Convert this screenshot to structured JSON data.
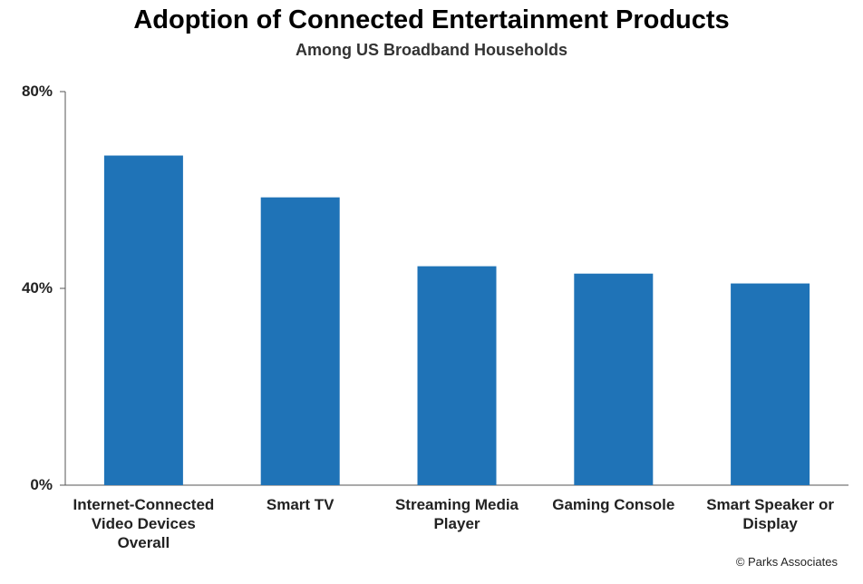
{
  "chart_data": {
    "type": "bar",
    "title": "Adoption of Connected Entertainment Products",
    "subtitle": "Among US Broadband Households",
    "categories": [
      "Internet-Connected\nVideo Devices\nOverall",
      "Smart TV",
      "Streaming Media\nPlayer",
      "Gaming Console",
      "Smart Speaker or\nDisplay"
    ],
    "values": [
      67,
      58.5,
      44.5,
      43,
      41
    ],
    "ylim": [
      0,
      80
    ],
    "yticks": [
      "0%",
      "40%",
      "80%"
    ],
    "ytick_values": [
      0,
      40,
      80
    ],
    "grid": false,
    "bar_color": "#1f73b7"
  },
  "credit": "© Parks Associates"
}
